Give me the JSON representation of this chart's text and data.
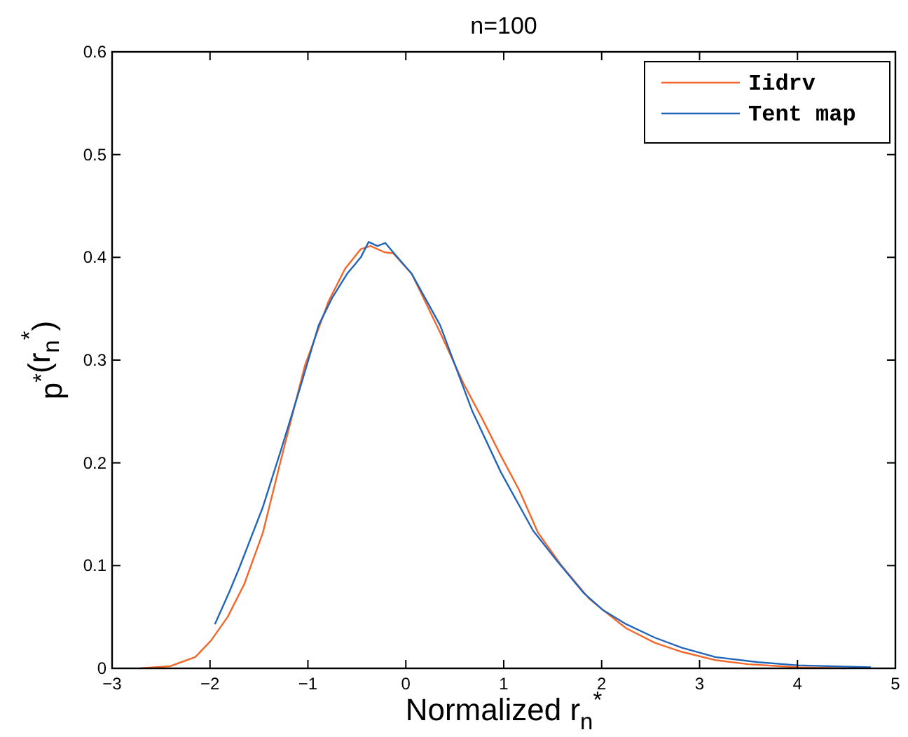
{
  "chart_data": {
    "type": "line",
    "title": "n=100",
    "xlabel": "Normalized  r$_{n}$$^{*}$",
    "ylabel": "p$^{*}$(r$_{n}$$^{*}$)",
    "xlim": [
      -3,
      5
    ],
    "ylim": [
      0,
      0.6
    ],
    "xticks": [
      {
        "value": -3,
        "label": "−3"
      },
      {
        "value": -2,
        "label": "−2"
      },
      {
        "value": -1,
        "label": "−1"
      },
      0,
      1,
      2,
      3,
      4,
      5
    ],
    "yticks": [
      0,
      0.1,
      0.2,
      0.3,
      0.4,
      0.5,
      0.6
    ],
    "grid": false,
    "legend": "top right",
    "line_style": "solid",
    "series": [
      {
        "name": "Iidrv",
        "color": "#f4672a",
        "x": [
          -2.72,
          -2.41,
          -2.15,
          -1.99,
          -1.82,
          -1.65,
          -1.46,
          -1.27,
          -1.03,
          -0.79,
          -0.62,
          -0.46,
          -0.36,
          -0.22,
          -0.13,
          0.06,
          0.35,
          0.59,
          0.78,
          0.97,
          1.16,
          1.35,
          1.59,
          1.87,
          2.01,
          2.25,
          2.54,
          2.82,
          3.16,
          3.5,
          4,
          4.5
        ],
        "values": [
          0,
          0.002,
          0.011,
          0.027,
          0.05,
          0.082,
          0.132,
          0.205,
          0.295,
          0.357,
          0.389,
          0.408,
          0.411,
          0.405,
          0.404,
          0.384,
          0.327,
          0.277,
          0.243,
          0.207,
          0.173,
          0.132,
          0.1,
          0.068,
          0.057,
          0.039,
          0.025,
          0.016,
          0.008,
          0.004,
          0.001,
          0
        ]
      },
      {
        "name": "Tent map",
        "color": "#2266bb",
        "x": [
          -1.95,
          -1.8,
          -1.7,
          -1.46,
          -1.27,
          -1.08,
          -0.89,
          -0.75,
          -0.6,
          -0.46,
          -0.38,
          -0.29,
          -0.21,
          -0.13,
          0.06,
          0.35,
          0.68,
          0.97,
          1.3,
          1.54,
          1.82,
          2.01,
          2.25,
          2.54,
          2.82,
          3.16,
          3.6,
          4,
          4.75
        ],
        "values": [
          0.043,
          0.075,
          0.098,
          0.157,
          0.214,
          0.273,
          0.334,
          0.361,
          0.384,
          0.4,
          0.415,
          0.411,
          0.414,
          0.405,
          0.384,
          0.334,
          0.25,
          0.191,
          0.134,
          0.105,
          0.073,
          0.057,
          0.043,
          0.03,
          0.02,
          0.011,
          0.006,
          0.003,
          0.001
        ]
      }
    ]
  }
}
